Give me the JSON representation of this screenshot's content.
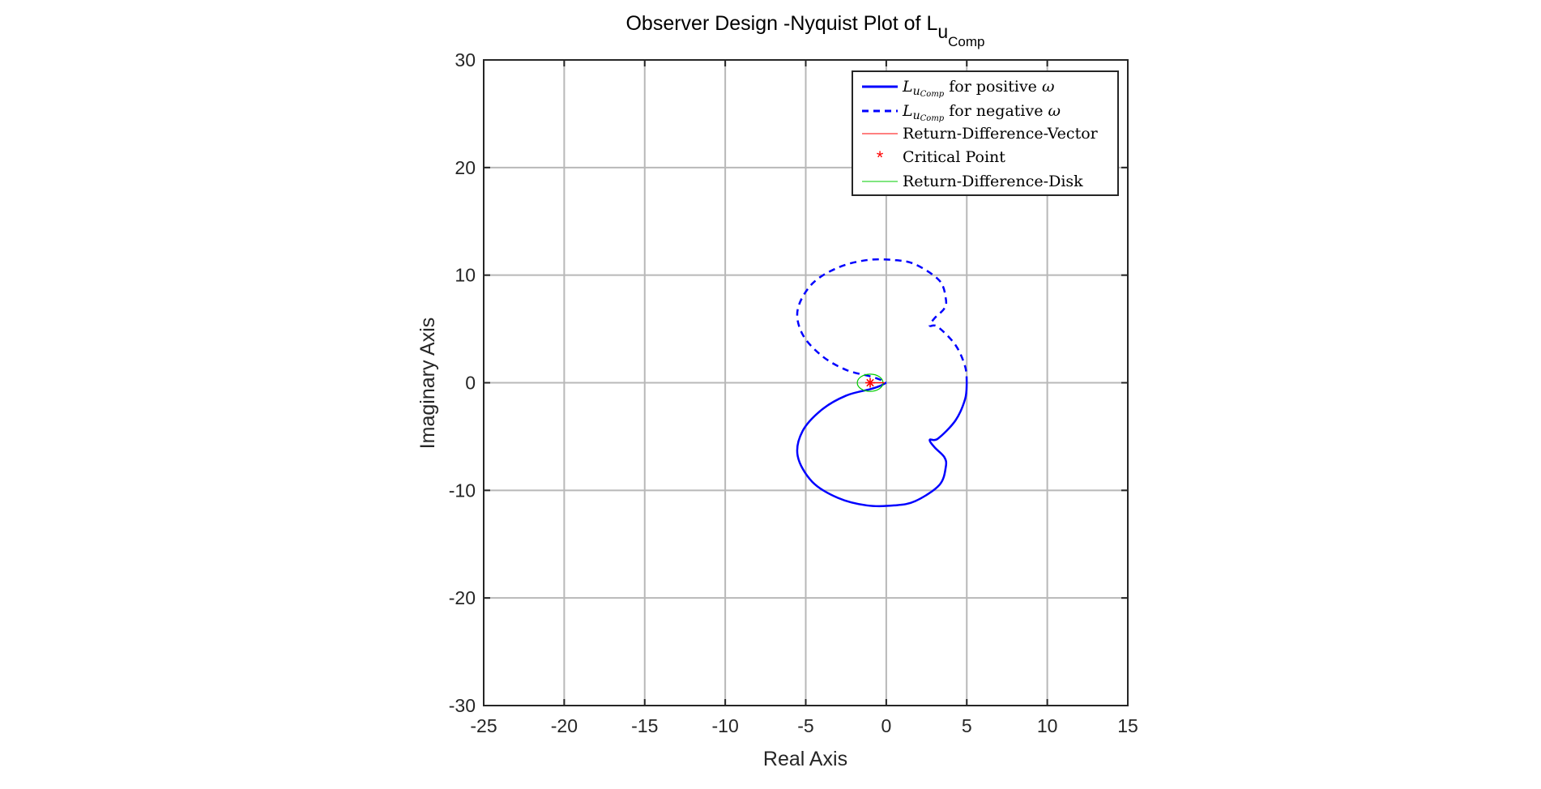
{
  "chart_data": {
    "type": "line",
    "title": "Observer Design -Nyquist Plot of L",
    "title_sub": "u",
    "title_subsub": "Comp",
    "xlabel": "Real Axis",
    "ylabel": "Imaginary Axis",
    "xlim": [
      -25,
      15
    ],
    "ylim": [
      -30,
      30
    ],
    "xticks": [
      -25,
      -20,
      -15,
      -10,
      -5,
      0,
      5,
      10,
      15
    ],
    "yticks": [
      -30,
      -20,
      -10,
      0,
      10,
      20,
      30
    ],
    "xtick_labels": [
      "-25",
      "-20",
      "-15",
      "-10",
      "-5",
      "0",
      "5",
      "10",
      "15"
    ],
    "ytick_labels": [
      "-30",
      "-20",
      "-10",
      "0",
      "10",
      "20",
      "30"
    ],
    "grid": true,
    "legend_position": "top-right",
    "colors": {
      "positive": "#0000ff",
      "negative": "#0000ff",
      "vector": "#ff0000",
      "critical": "#ff0000",
      "disk": "#00cc00",
      "grid": "#b8b8b8",
      "axes": "#262626"
    },
    "series": [
      {
        "name": "for positive",
        "name_math": "L",
        "name_sub": "u",
        "name_subsub": "Comp",
        "name_tail": "ω",
        "style": "solid",
        "points": [
          [
            0,
            0
          ],
          [
            -0.4,
            -0.3
          ],
          [
            -1.0,
            -0.6
          ],
          [
            -2.5,
            -1.2
          ],
          [
            -4.0,
            -2.5
          ],
          [
            -5.2,
            -4.5
          ],
          [
            -5.5,
            -6.8
          ],
          [
            -4.6,
            -9.2
          ],
          [
            -3.0,
            -10.7
          ],
          [
            -1.2,
            -11.4
          ],
          [
            0.5,
            -11.4
          ],
          [
            1.8,
            -11.0
          ],
          [
            3.3,
            -9.5
          ],
          [
            3.7,
            -7.8
          ],
          [
            3.6,
            -6.9
          ],
          [
            3.0,
            -6.0
          ],
          [
            2.7,
            -5.3
          ],
          [
            3.2,
            -5.2
          ],
          [
            4.3,
            -3.5
          ],
          [
            4.9,
            -1.5
          ],
          [
            5.0,
            0
          ]
        ]
      },
      {
        "name": "for negative",
        "name_math": "L",
        "name_sub": "u",
        "name_subsub": "Comp",
        "name_tail": "ω",
        "style": "dashed",
        "points": [
          [
            5.0,
            0
          ],
          [
            4.9,
            1.5
          ],
          [
            4.3,
            3.5
          ],
          [
            3.2,
            5.2
          ],
          [
            2.7,
            5.3
          ],
          [
            3.0,
            6.0
          ],
          [
            3.6,
            6.9
          ],
          [
            3.7,
            7.8
          ],
          [
            3.3,
            9.5
          ],
          [
            1.8,
            11.0
          ],
          [
            0.5,
            11.4
          ],
          [
            -1.2,
            11.4
          ],
          [
            -3.0,
            10.7
          ],
          [
            -4.6,
            9.2
          ],
          [
            -5.5,
            6.8
          ],
          [
            -5.2,
            4.5
          ],
          [
            -4.0,
            2.5
          ],
          [
            -2.5,
            1.2
          ],
          [
            -1.0,
            0.6
          ],
          [
            -0.4,
            0.3
          ],
          [
            0,
            0
          ]
        ]
      }
    ],
    "return_difference_vector": {
      "name": "Return-Difference-Vector",
      "from": [
        -1,
        0
      ],
      "to": [
        -0.1,
        0
      ]
    },
    "critical_point": {
      "name": "Critical Point",
      "x": -1,
      "y": 0
    },
    "return_difference_disk": {
      "name": "Return-Difference-Disk",
      "cx": -1,
      "cy": 0,
      "r": 0.8
    }
  }
}
